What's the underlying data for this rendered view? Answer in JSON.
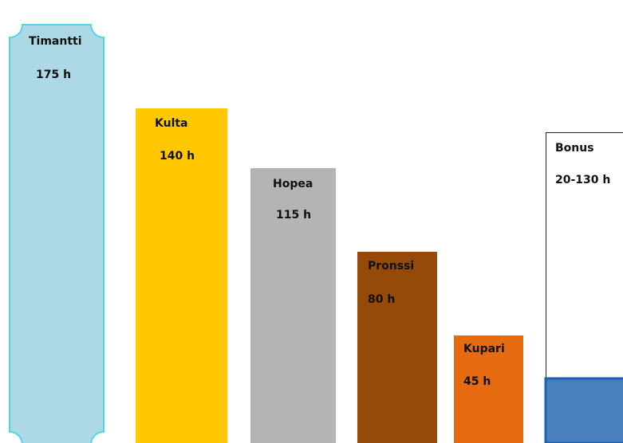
{
  "chart_data": {
    "type": "bar",
    "title": "",
    "xlabel": "",
    "ylabel": "",
    "unit": "h",
    "categories": [
      "Timantti",
      "Kulta",
      "Hopea",
      "Pronssi",
      "Kupari",
      "Bonus"
    ],
    "values": [
      175,
      140,
      115,
      80,
      45,
      130
    ],
    "value_labels": [
      "175 h",
      "140 h",
      "115 h",
      "80 h",
      "45 h",
      "20-130 h"
    ],
    "bonus_range": [
      20,
      130
    ],
    "ylim": [
      0,
      180
    ],
    "grid": false,
    "legend": "none",
    "colors": {
      "Timantti": "#add8e6",
      "Timantti_border": "#4fd6e6",
      "Kulta": "#ffc800",
      "Hopea": "#b4b4b4",
      "Pronssi": "#954a0a",
      "Kupari": "#e66a10",
      "Bonus_fill": "#4a80bf",
      "Bonus_border": "#1e5fb0",
      "Bonus_frame": "#222222"
    }
  }
}
